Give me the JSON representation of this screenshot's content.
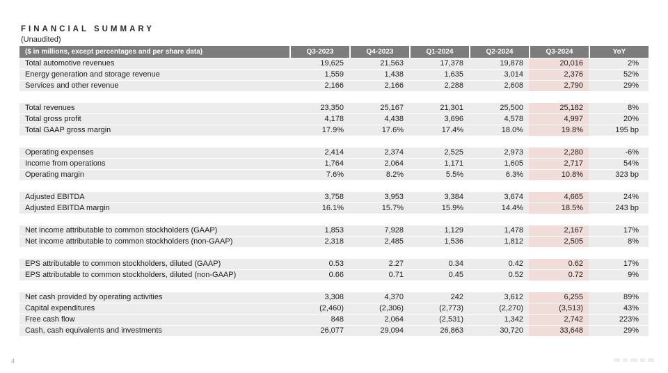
{
  "title": "FINANCIAL SUMMARY",
  "subtitle": "(Unaudited)",
  "footer": {
    "page_number": "4"
  },
  "colors": {
    "header_bg": "#7c7c7c",
    "header_text": "#ffffff",
    "row_bg": "#ececec",
    "highlight_bg": "#f0dcd9",
    "text": "#1c1c1c"
  },
  "table": {
    "label_header": "($ in millions, except percentages and per share data)",
    "columns": [
      "Q3-2023",
      "Q4-2023",
      "Q1-2024",
      "Q2-2024",
      "Q3-2024",
      "YoY"
    ],
    "highlight_column": "Q3-2024",
    "sections": [
      {
        "rows": [
          {
            "label": "Total automotive revenues",
            "values": [
              "19,625",
              "21,563",
              "17,378",
              "19,878",
              "20,016",
              "2%"
            ]
          },
          {
            "label": "Energy generation and storage revenue",
            "values": [
              "1,559",
              "1,438",
              "1,635",
              "3,014",
              "2,376",
              "52%"
            ]
          },
          {
            "label": "Services and other revenue",
            "values": [
              "2,166",
              "2,166",
              "2,288",
              "2,608",
              "2,790",
              "29%"
            ]
          }
        ]
      },
      {
        "rows": [
          {
            "label": "Total revenues",
            "values": [
              "23,350",
              "25,167",
              "21,301",
              "25,500",
              "25,182",
              "8%"
            ]
          },
          {
            "label": "Total gross profit",
            "values": [
              "4,178",
              "4,438",
              "3,696",
              "4,578",
              "4,997",
              "20%"
            ]
          },
          {
            "label": "Total GAAP gross margin",
            "values": [
              "17.9%",
              "17.6%",
              "17.4%",
              "18.0%",
              "19.8%",
              "195 bp"
            ]
          }
        ]
      },
      {
        "rows": [
          {
            "label": "Operating expenses",
            "values": [
              "2,414",
              "2,374",
              "2,525",
              "2,973",
              "2,280",
              "-6%"
            ]
          },
          {
            "label": "Income from operations",
            "values": [
              "1,764",
              "2,064",
              "1,171",
              "1,605",
              "2,717",
              "54%"
            ]
          },
          {
            "label": "Operating margin",
            "values": [
              "7.6%",
              "8.2%",
              "5.5%",
              "6.3%",
              "10.8%",
              "323 bp"
            ]
          }
        ]
      },
      {
        "rows": [
          {
            "label": "Adjusted EBITDA",
            "values": [
              "3,758",
              "3,953",
              "3,384",
              "3,674",
              "4,665",
              "24%"
            ]
          },
          {
            "label": "Adjusted EBITDA margin",
            "values": [
              "16.1%",
              "15.7%",
              "15.9%",
              "14.4%",
              "18.5%",
              "243 bp"
            ]
          }
        ]
      },
      {
        "rows": [
          {
            "label": "Net income attributable to common stockholders (GAAP)",
            "values": [
              "1,853",
              "7,928",
              "1,129",
              "1,478",
              "2,167",
              "17%"
            ]
          },
          {
            "label": "Net income attributable to common stockholders (non-GAAP)",
            "values": [
              "2,318",
              "2,485",
              "1,536",
              "1,812",
              "2,505",
              "8%"
            ]
          }
        ]
      },
      {
        "rows": [
          {
            "label": "EPS attributable to common stockholders, diluted (GAAP)",
            "values": [
              "0.53",
              "2.27",
              "0.34",
              "0.42",
              "0.62",
              "17%"
            ]
          },
          {
            "label": "EPS attributable to common stockholders, diluted (non-GAAP)",
            "values": [
              "0.66",
              "0.71",
              "0.45",
              "0.52",
              "0.72",
              "9%"
            ]
          }
        ]
      },
      {
        "rows": [
          {
            "label": "Net cash provided by operating activities",
            "values": [
              "3,308",
              "4,370",
              "242",
              "3,612",
              "6,255",
              "89%"
            ]
          },
          {
            "label": "Capital expenditures",
            "values": [
              "(2,460)",
              "(2,306)",
              "(2,773)",
              "(2,270)",
              "(3,513)",
              "43%"
            ]
          },
          {
            "label": "Free cash flow",
            "values": [
              "848",
              "2,064",
              "(2,531)",
              "1,342",
              "2,742",
              "223%"
            ]
          },
          {
            "label": "Cash, cash equivalents and investments",
            "values": [
              "26,077",
              "29,094",
              "26,863",
              "30,720",
              "33,648",
              "29%"
            ]
          }
        ]
      }
    ]
  }
}
